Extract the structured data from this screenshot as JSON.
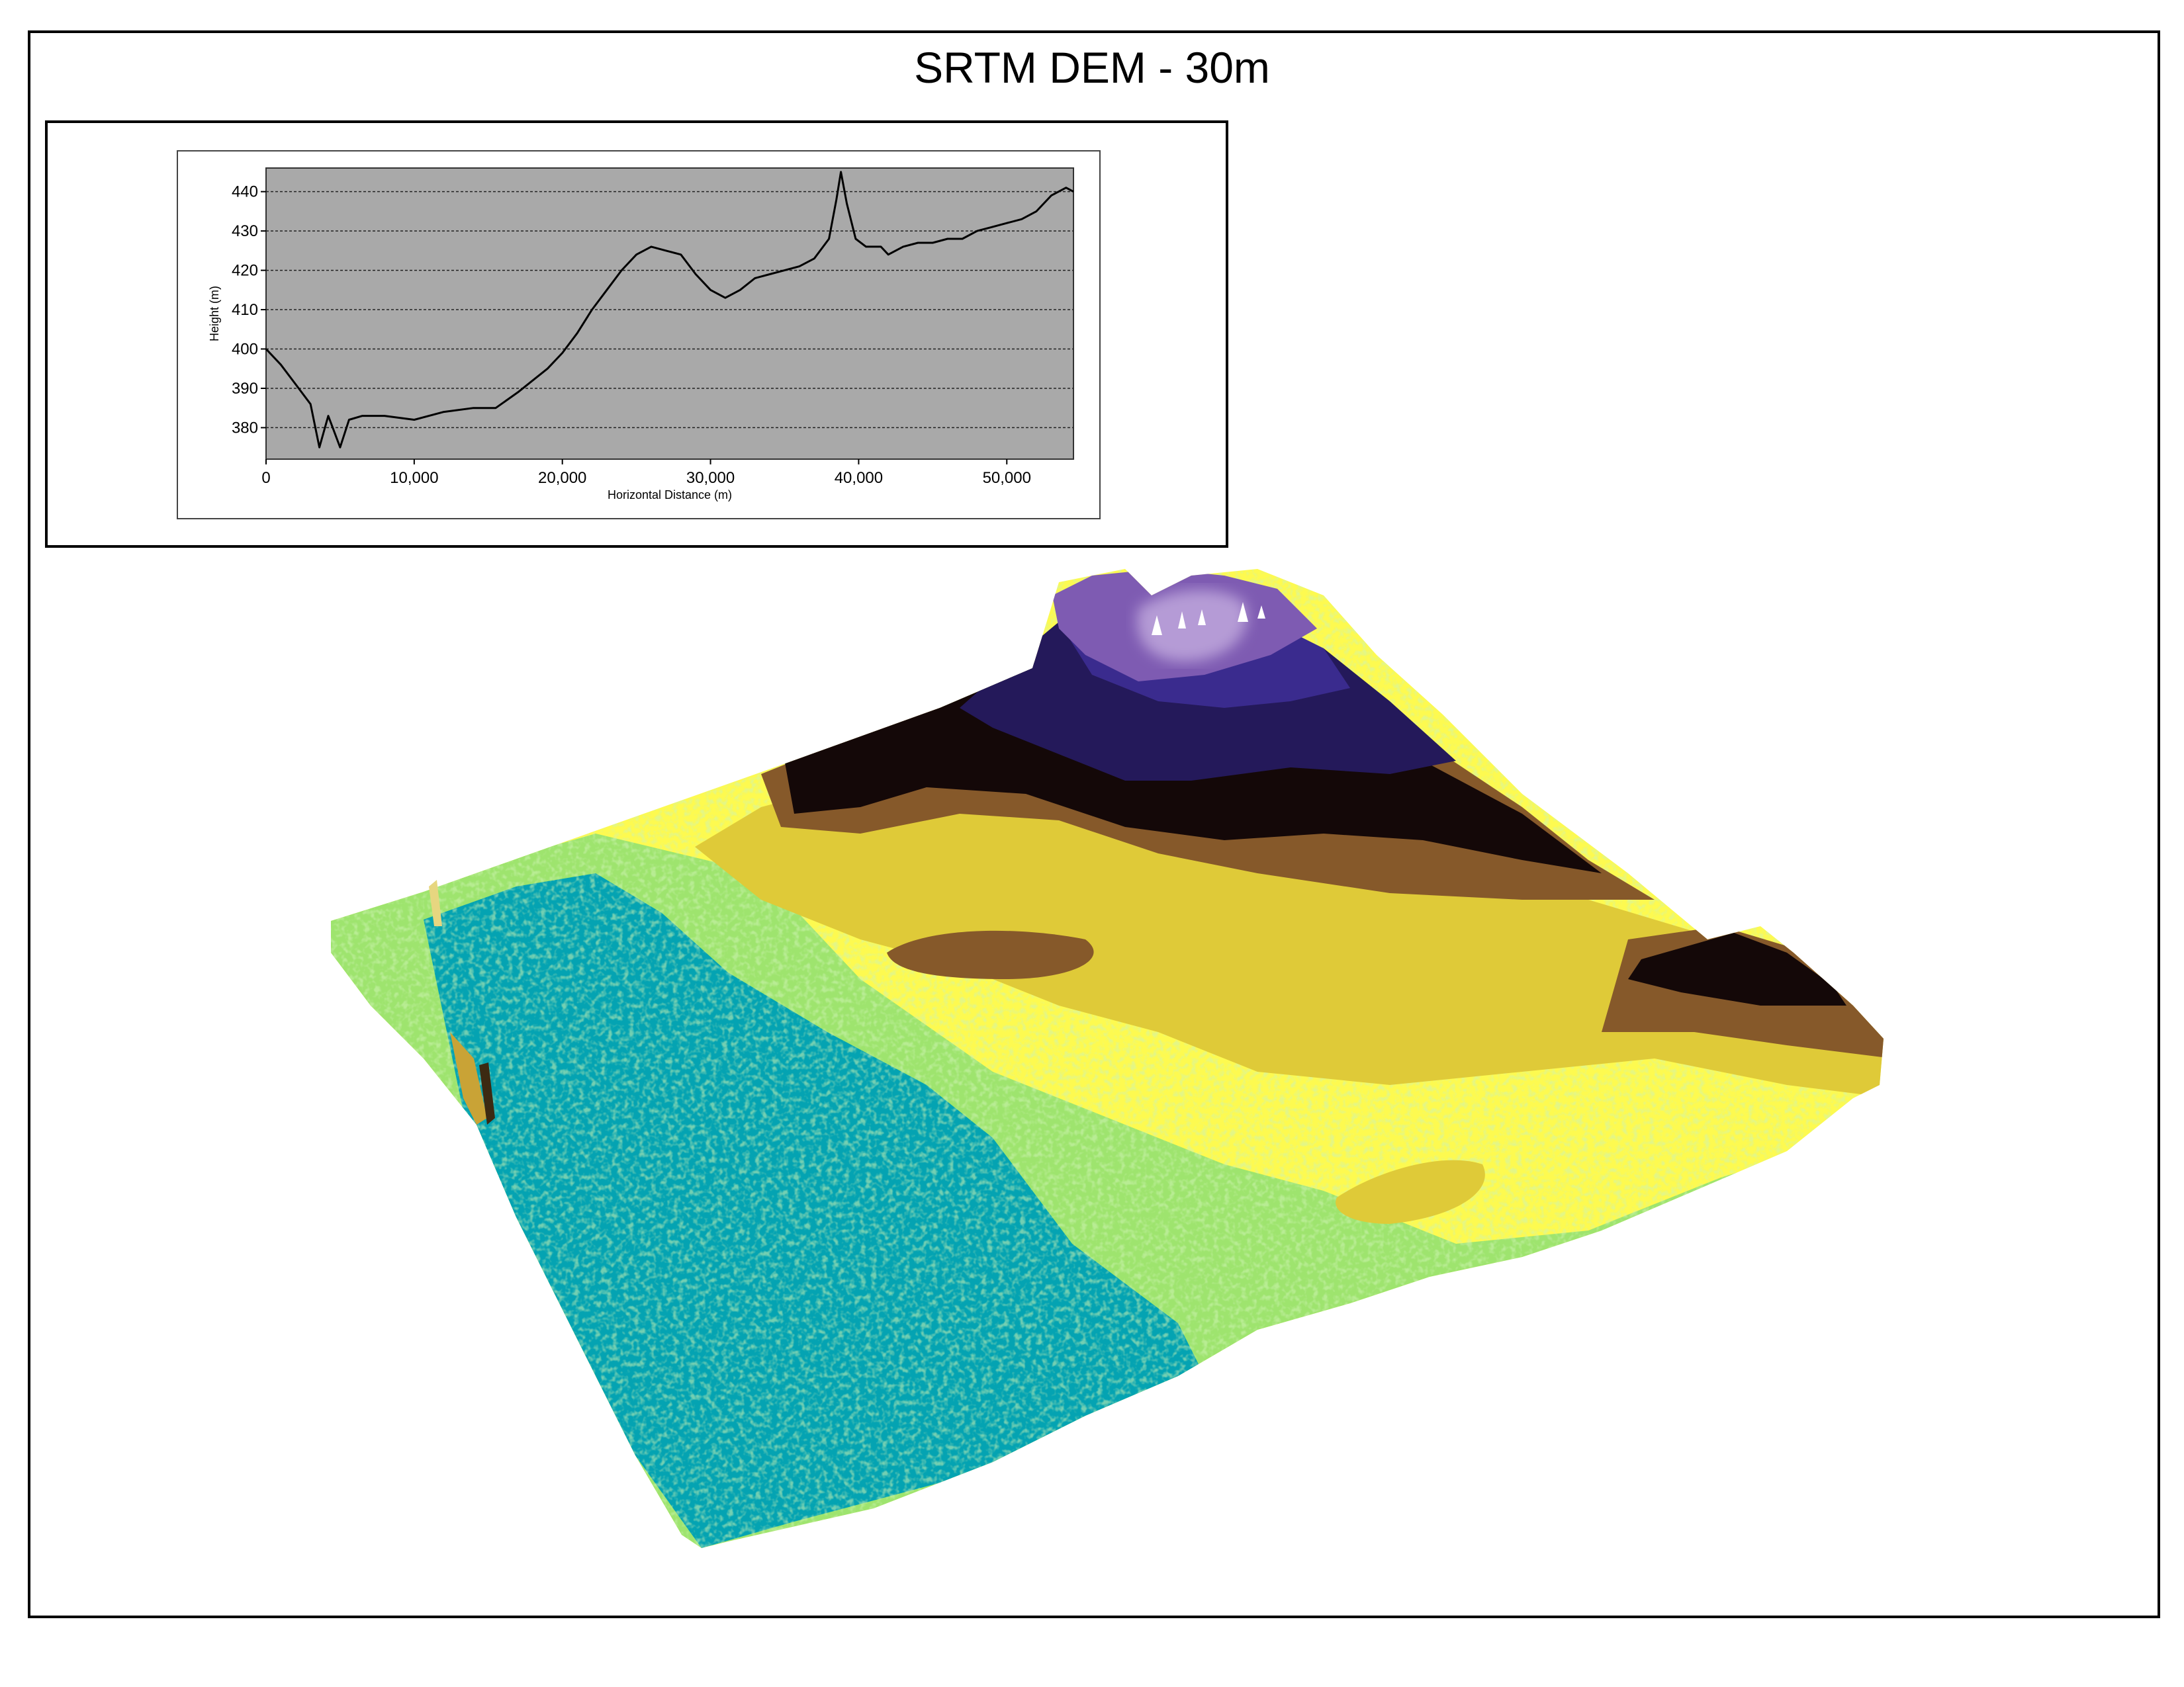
{
  "title": "SRTM DEM - 30m",
  "chart_data": {
    "type": "line",
    "xlabel": "Horizontal Distance (m)",
    "ylabel": "Height (m)",
    "xlim": [
      0,
      54500
    ],
    "ylim": [
      372,
      446
    ],
    "x_ticks": [
      0,
      10000,
      20000,
      30000,
      40000,
      50000
    ],
    "x_tick_labels": [
      "0",
      "10,000",
      "20,000",
      "30,000",
      "40,000",
      "50,000"
    ],
    "y_ticks": [
      380,
      390,
      400,
      410,
      420,
      430,
      440
    ],
    "y_tick_labels": [
      "380",
      "390",
      "400",
      "410",
      "420",
      "430",
      "440"
    ],
    "grid": "horizontal dashed",
    "plot_background": "#a9a9a9",
    "line_color": "#000000",
    "series": [
      {
        "x": [
          0,
          1000,
          2000,
          3000,
          3600,
          4200,
          5000,
          5600,
          6500,
          8000,
          10000,
          12000,
          14000,
          15500,
          17000,
          18000,
          19000,
          20000,
          21000,
          22000,
          23000,
          24000,
          25000,
          26000,
          27000,
          28000,
          29000,
          30000,
          31000,
          32000,
          33000,
          34000,
          35000,
          36000,
          37000,
          38000,
          38500,
          38800,
          39200,
          39800,
          40500,
          41500,
          42000,
          43000,
          44000,
          45000,
          46000,
          47000,
          48000,
          49000,
          50000,
          51000,
          52000,
          53000,
          54000,
          54500
        ],
        "y": [
          400,
          396,
          391,
          386,
          375,
          383,
          375,
          382,
          383,
          383,
          382,
          384,
          385,
          385,
          389,
          392,
          395,
          399,
          404,
          410,
          415,
          420,
          424,
          426,
          425,
          424,
          419,
          415,
          413,
          415,
          418,
          419,
          420,
          421,
          423,
          428,
          438,
          445,
          437,
          428,
          426,
          426,
          424,
          426,
          427,
          427,
          428,
          428,
          430,
          431,
          432,
          433,
          435,
          439,
          441,
          440
        ]
      }
    ]
  }
}
